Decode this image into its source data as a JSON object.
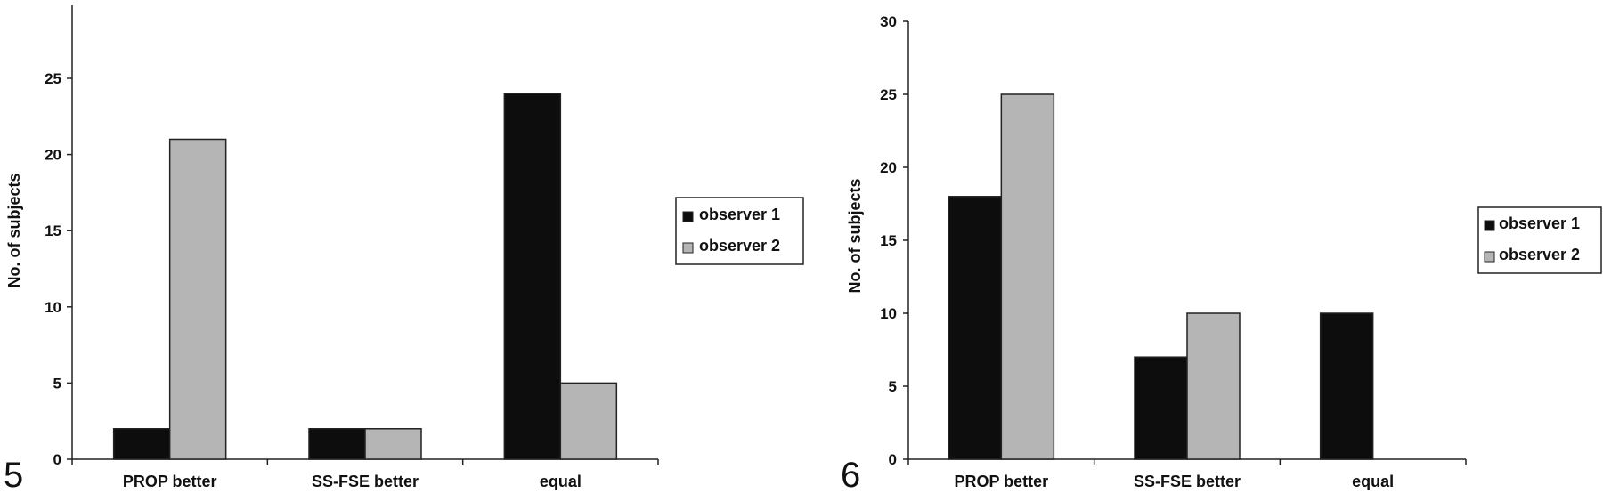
{
  "chart_data": [
    {
      "type": "bar",
      "figure_number": "5",
      "categories": [
        "PROP better",
        "SS-FSE better",
        "equal"
      ],
      "series": [
        {
          "name": "observer 1",
          "values": [
            2,
            2,
            24
          ],
          "color": "#0d0d0d"
        },
        {
          "name": "observer 2",
          "values": [
            21,
            2,
            5
          ],
          "color": "#b5b5b5"
        }
      ],
      "ylabel": "No. of subjects",
      "ylim": [
        0,
        30
      ],
      "yticks": [
        0,
        5,
        10,
        15,
        20,
        25
      ],
      "legend_position": "right",
      "grid": false
    },
    {
      "type": "bar",
      "figure_number": "6",
      "categories": [
        "PROP better",
        "SS-FSE better",
        "equal"
      ],
      "series": [
        {
          "name": "observer 1",
          "values": [
            18,
            7,
            10
          ],
          "color": "#0d0d0d"
        },
        {
          "name": "observer 2",
          "values": [
            25,
            10,
            0
          ],
          "color": "#b5b5b5"
        }
      ],
      "ylabel": "No. of subjects",
      "ylim": [
        0,
        30
      ],
      "yticks": [
        0,
        5,
        10,
        15,
        20,
        25,
        30
      ],
      "legend_position": "right",
      "grid": false
    }
  ]
}
